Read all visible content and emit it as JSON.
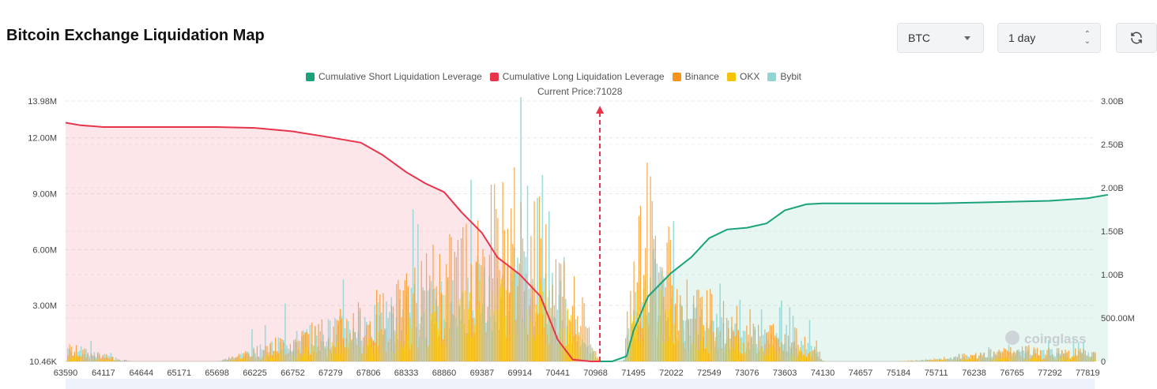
{
  "header": {
    "title": "Bitcoin Exchange Liquidation Map",
    "symbol_select": "BTC",
    "period_select": "1 day"
  },
  "legend": [
    {
      "label": "Cumulative Short Liquidation Leverage",
      "color": "#1aa37a"
    },
    {
      "label": "Cumulative Long Liquidation Leverage",
      "color": "#e8334a"
    },
    {
      "label": "Binance",
      "color": "#f7931a"
    },
    {
      "label": "OKX",
      "color": "#f5c400"
    },
    {
      "label": "Bybit",
      "color": "#8ed6d6"
    }
  ],
  "current_price_label": "Current Price:71028",
  "watermark": "coinglass",
  "chart_data": {
    "type": "bar",
    "current_price": 71028,
    "x_ticks": [
      "63590",
      "64117",
      "64644",
      "65171",
      "65698",
      "66225",
      "66752",
      "67279",
      "67806",
      "68333",
      "68860",
      "69387",
      "69914",
      "70441",
      "70968",
      "71495",
      "72022",
      "72549",
      "73076",
      "73603",
      "74130",
      "74657",
      "75184",
      "75711",
      "76238",
      "76765",
      "77292",
      "77819"
    ],
    "y_left_ticks": [
      "13.98M",
      "12.00M",
      "9.00M",
      "6.00M",
      "3.00M",
      "10.46K"
    ],
    "y_right_ticks": [
      "3.00B",
      "2.50B",
      "2.00B",
      "1.50B",
      "1.00B",
      "500.00M",
      "0"
    ],
    "y_left_lim": [
      0,
      13980000
    ],
    "y_right_lim": [
      0,
      3000000000
    ],
    "long_cumulative": {
      "name": "Cumulative Long Liquidation Leverage",
      "x": [
        63590,
        63800,
        64117,
        64644,
        65171,
        65698,
        66225,
        66752,
        67279,
        67700,
        68000,
        68333,
        68600,
        68860,
        69100,
        69387,
        69600,
        69914,
        70200,
        70441,
        70650,
        70900,
        71028
      ],
      "values": [
        2750000000.0,
        2720000000.0,
        2700000000.0,
        2700000000.0,
        2700000000.0,
        2700000000.0,
        2690000000.0,
        2650000000.0,
        2580000000.0,
        2520000000.0,
        2380000000.0,
        2180000000.0,
        2050000000.0,
        1950000000.0,
        1720000000.0,
        1480000000.0,
        1200000000.0,
        1000000000.0,
        750000000.0,
        250000000.0,
        20000000.0,
        0.0,
        0.0
      ]
    },
    "short_cumulative": {
      "name": "Cumulative Short Liquidation Leverage",
      "x": [
        71028,
        71200,
        71400,
        71495,
        71700,
        72022,
        72300,
        72549,
        72800,
        73076,
        73350,
        73603,
        73900,
        74130,
        74657,
        75184,
        75711,
        76238,
        76765,
        77292,
        77819,
        78100
      ],
      "values": [
        0.0,
        0.0,
        60000000.0,
        350000000.0,
        750000000.0,
        1020000000.0,
        1200000000.0,
        1420000000.0,
        1520000000.0,
        1540000000.0,
        1590000000.0,
        1740000000.0,
        1810000000.0,
        1820000000.0,
        1820000000.0,
        1820000000.0,
        1820000000.0,
        1830000000.0,
        1840000000.0,
        1850000000.0,
        1880000000.0,
        1920000000.0
      ]
    },
    "exchange_density": {
      "note": "relative liquidation leverage per price level (left axis, M)",
      "x": [
        63590,
        64000,
        64500,
        65171,
        65698,
        66225,
        66752,
        67279,
        67806,
        68333,
        68860,
        69387,
        69914,
        70441,
        70700,
        71028,
        71350,
        71495,
        71800,
        72022,
        72300,
        72549,
        73076,
        73603,
        74000,
        74130,
        74657,
        75184,
        75711,
        76238,
        76765,
        77292,
        77819,
        78100
      ],
      "binance": [
        0.6,
        0.3,
        0,
        0,
        0,
        0.5,
        1.0,
        1.5,
        2.0,
        2.8,
        4.0,
        5.5,
        6.0,
        4.2,
        2.5,
        0,
        0,
        5.5,
        6.5,
        3.5,
        2.5,
        2.2,
        1.6,
        1.2,
        0.9,
        0,
        0,
        0,
        0.1,
        0.3,
        0.5,
        0.5,
        0.4,
        0.3
      ],
      "okx": [
        0.3,
        0.1,
        0,
        0,
        0,
        0.2,
        0.5,
        0.8,
        1.0,
        1.5,
        2.5,
        3.0,
        3.5,
        2.5,
        1.5,
        0,
        0,
        3.0,
        3.5,
        2.0,
        1.5,
        1.2,
        0.9,
        0.6,
        0.4,
        0,
        0,
        0,
        0.05,
        0.15,
        0.2,
        0.2,
        0.2,
        0.1
      ],
      "bybit": [
        0.8,
        0.4,
        0,
        0,
        0,
        0.6,
        1.2,
        1.8,
        2.2,
        3.0,
        3.8,
        4.5,
        4.8,
        3.5,
        2.0,
        0,
        0,
        4.5,
        5.0,
        3.0,
        2.4,
        2.0,
        1.5,
        1.1,
        0.8,
        0,
        0,
        0,
        0.1,
        0.3,
        0.5,
        0.5,
        0.4,
        0.3
      ]
    },
    "grid": true,
    "legend_position": "top-center"
  }
}
